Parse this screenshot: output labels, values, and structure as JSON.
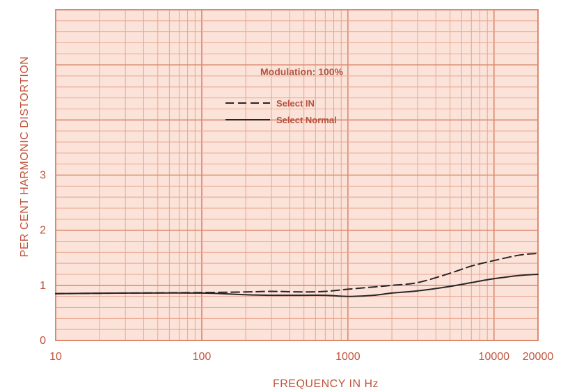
{
  "chart_data": {
    "type": "line",
    "title": "",
    "xlabel": "FREQUENCY IN Hz",
    "ylabel": "PER CENT HARMONIC DISTORTION",
    "x_scale": "log",
    "xlim": [
      10,
      20000
    ],
    "ylim": [
      0,
      6
    ],
    "x_ticks": [
      10,
      100,
      1000,
      10000,
      20000
    ],
    "x_tick_labels": [
      "10",
      "100",
      "1000",
      "10000",
      "20000"
    ],
    "y_ticks": [
      0,
      1,
      2,
      3
    ],
    "y_tick_labels": [
      "0",
      "1",
      "2",
      "3"
    ],
    "grid": true,
    "annotation": "Modulation: 100%",
    "legend_position": "upper-center",
    "colors": {
      "background": "#fbe3d9",
      "grid_minor": "#e9a58e",
      "grid_major": "#dc8a70",
      "frame": "#dc8a70",
      "line": "#2a2424",
      "text": "#c0533b",
      "legend_text": "#b5533f"
    },
    "series": [
      {
        "name": "Select IN",
        "style": "dashed",
        "x": [
          10,
          30,
          100,
          200,
          300,
          500,
          700,
          1000,
          1500,
          2000,
          3000,
          5000,
          7000,
          10000,
          15000,
          20000
        ],
        "y": [
          0.85,
          0.86,
          0.87,
          0.88,
          0.89,
          0.88,
          0.89,
          0.93,
          0.97,
          1.0,
          1.05,
          1.22,
          1.35,
          1.45,
          1.55,
          1.58
        ]
      },
      {
        "name": "Select Normal",
        "style": "solid",
        "x": [
          10,
          30,
          100,
          200,
          300,
          500,
          700,
          1000,
          1500,
          2000,
          3000,
          5000,
          7000,
          10000,
          15000,
          20000
        ],
        "y": [
          0.85,
          0.86,
          0.86,
          0.83,
          0.82,
          0.82,
          0.82,
          0.8,
          0.82,
          0.86,
          0.9,
          0.98,
          1.05,
          1.12,
          1.18,
          1.2
        ]
      }
    ]
  }
}
